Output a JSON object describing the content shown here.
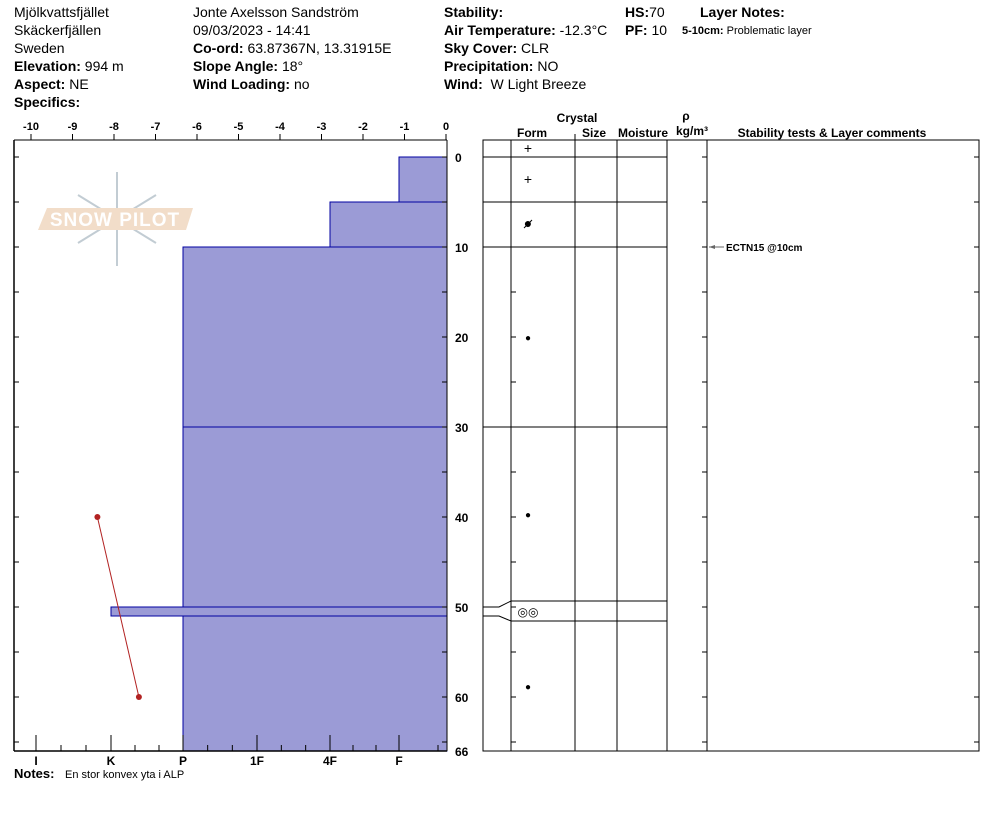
{
  "header": {
    "location": "Mjölkvattsfjället",
    "range": "Skäckerfjällen",
    "country": "Sweden",
    "elevation_label": "Elevation:",
    "elevation": "994 m",
    "aspect_label": "Aspect:",
    "aspect": "NE",
    "specifics_label": "Specifics:",
    "observer": "Jonte Axelsson Sandström",
    "datetime": "09/03/2023 - 14:41",
    "coord_label": "Co-ord:",
    "coord": "63.87367N, 13.31915E",
    "slope_label": "Slope Angle:",
    "slope": "18°",
    "wind_loading_label": "Wind Loading:",
    "wind_loading": "no",
    "stability_label": "Stability:",
    "air_temp_label": "Air Temperature:",
    "air_temp": "-12.3°C",
    "sky_label": "Sky Cover:",
    "sky": "CLR",
    "precip_label": "Precipitation:",
    "precip": "NO",
    "wind_label": "Wind:",
    "wind": "W Light Breeze",
    "hs_label": "HS:",
    "hs": "70",
    "pf_label": "PF:",
    "pf": "10",
    "layer_notes_label": "Layer Notes:",
    "layer_note_range": "5-10cm:",
    "layer_note_text": "Problematic layer"
  },
  "notes_label": "Notes:",
  "notes": "En stor konvex yta i ALP",
  "logo_text": "SNOW PILOT",
  "table_headers": {
    "crystal": "Crystal",
    "form": "Form",
    "size": "Size",
    "moisture": "Moisture",
    "rho": "ρ",
    "density_unit": "kg/m³",
    "comments": "Stability tests & Layer comments"
  },
  "chart_data": {
    "type": "snow-profile",
    "temperature_axis": {
      "ticks": [
        -10,
        -9,
        -8,
        -7,
        -6,
        -5,
        -4,
        -3,
        -2,
        -1,
        0
      ],
      "range": [
        -10.4,
        0
      ]
    },
    "depth_axis": {
      "ticks": [
        0,
        10,
        20,
        30,
        40,
        50,
        60,
        66
      ],
      "range": [
        0,
        66
      ]
    },
    "hardness_axis": {
      "ticks": [
        "I",
        "K",
        "P",
        "1F",
        "4F",
        "F"
      ]
    },
    "layers": [
      {
        "top": 0,
        "bottom": 5,
        "hardness": "F",
        "form": "+"
      },
      {
        "top": 5,
        "bottom": 10,
        "hardness": "4F",
        "form": "rounding-faceted"
      },
      {
        "top": 10,
        "bottom": 30,
        "hardness": "P",
        "form": "•"
      },
      {
        "top": 30,
        "bottom": 50,
        "hardness": "P",
        "form": "•"
      },
      {
        "top": 50,
        "bottom": 51,
        "hardness": "K",
        "form": "◎◎"
      },
      {
        "top": 51,
        "bottom": 66,
        "hardness": "P",
        "form": "•"
      }
    ],
    "temperature_profile": [
      {
        "depth": 40,
        "temp": -8.4
      },
      {
        "depth": 60,
        "temp": -7.4
      }
    ],
    "stability_tests": [
      {
        "depth": 10,
        "label": "ECTN15 @10cm"
      }
    ],
    "colors": {
      "hardness_fill": "#9b9bd6",
      "hardness_stroke": "#0000a0",
      "temperature": "#b22222"
    }
  }
}
